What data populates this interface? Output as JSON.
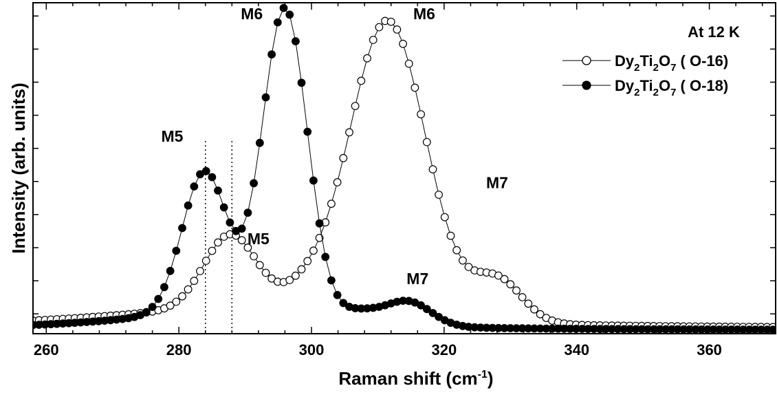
{
  "chart_data": {
    "type": "scatter",
    "title": "",
    "xlabel": "Raman shift (cm",
    "xlabel_sup": "-1",
    "xlabel_close": ")",
    "ylabel": "Intensity (arb. units)",
    "xlim": [
      258,
      370
    ],
    "ylim": [
      0,
      1.0
    ],
    "x_ticks": [
      260,
      280,
      300,
      320,
      340,
      360
    ],
    "x_tick_labels": [
      "260",
      "280",
      "300",
      "320",
      "340",
      "360"
    ],
    "y_tick_labels_shown": false,
    "grid": false,
    "legend_placement": "top-right",
    "legend": {
      "title": "At 12 K",
      "entries": [
        {
          "prefix": "Dy",
          "s1": "2",
          "mid": "Ti",
          "s2": "2",
          "o": "O",
          "s3": "7",
          "suffix": " ( O-16)",
          "marker": "open-circle"
        },
        {
          "prefix": "Dy",
          "s1": "2",
          "mid": "Ti",
          "s2": "2",
          "o": "O",
          "s3": "7",
          "suffix": " ( O-18)",
          "marker": "filled-circle"
        }
      ]
    },
    "reference_lines_x": [
      284,
      288
    ],
    "annotations": [
      {
        "text": "M5",
        "x": 279,
        "y": 0.58
      },
      {
        "text": "M6",
        "x": 291,
        "y": 0.95
      },
      {
        "text": "M5",
        "x": 292,
        "y": 0.27
      },
      {
        "text": "M6",
        "x": 317,
        "y": 0.95
      },
      {
        "text": "M7",
        "x": 328,
        "y": 0.44
      },
      {
        "text": "M7",
        "x": 316,
        "y": 0.15
      }
    ],
    "series": [
      {
        "name": "Dy2Ti2O7 ( O-16)",
        "marker": "open-circle",
        "peaks": [
          [
            287.8,
            0.225,
            4.0
          ],
          [
            311.5,
            0.9,
            5.8
          ],
          [
            328,
            0.13,
            3.8
          ],
          [
            299,
            0.05,
            3.5
          ]
        ],
        "baseline": 0.015,
        "tail": 0.06,
        "tail_width": 25
      },
      {
        "name": "Dy2Ti2O7 ( O-18)",
        "marker": "filled-circle",
        "peaks": [
          [
            283.9,
            0.43,
            3.4
          ],
          [
            296,
            0.94,
            3.4
          ],
          [
            314.5,
            0.075,
            3.5
          ],
          [
            307,
            0.035,
            3.0
          ]
        ],
        "baseline": 0.01,
        "tail": 0.05,
        "tail_width": 18
      }
    ],
    "x_sampling": {
      "start": 258,
      "end": 370,
      "step": 0.9
    }
  }
}
